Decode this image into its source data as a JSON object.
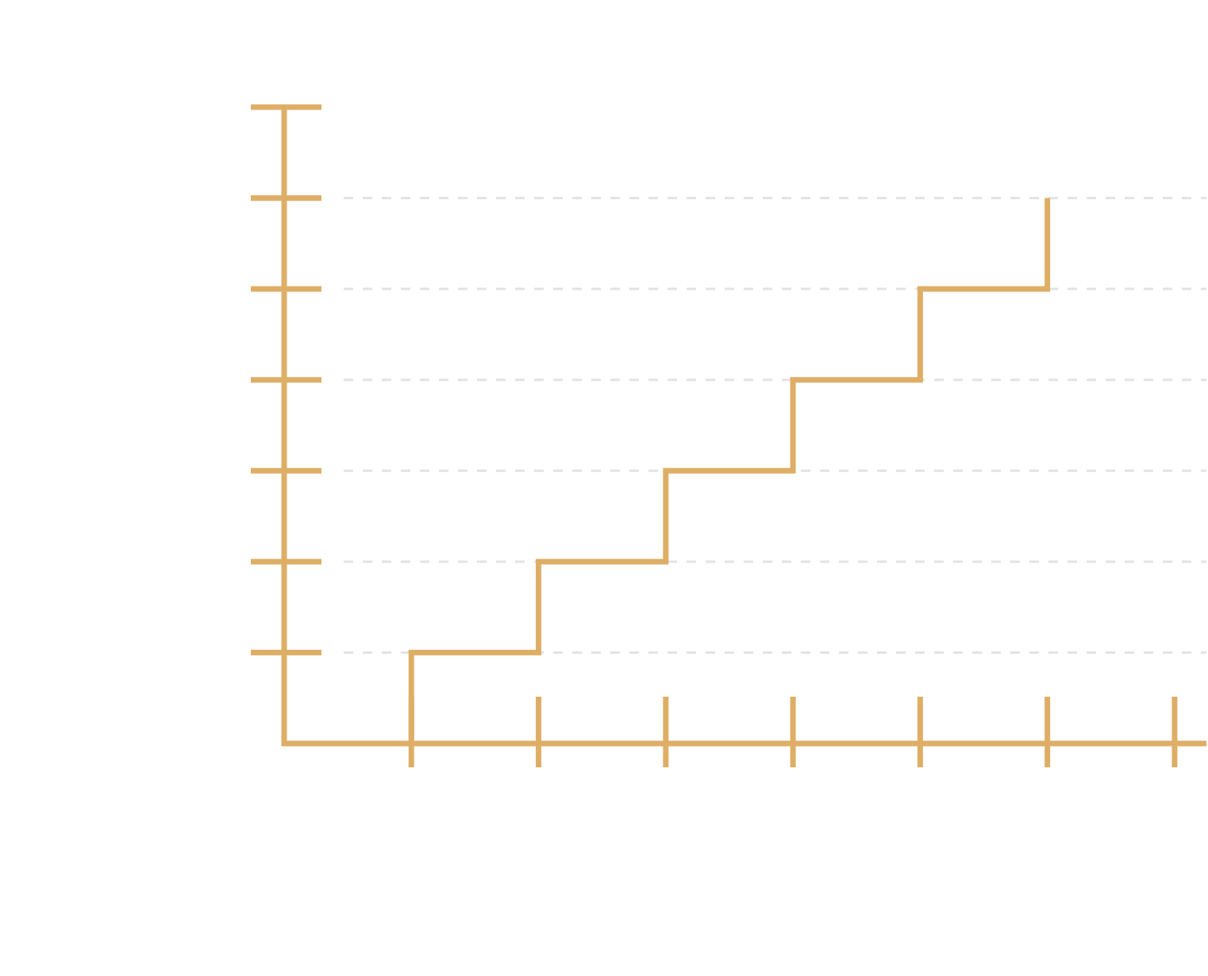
{
  "colors": {
    "line": "#dfae66",
    "axis": "#dfae66",
    "grid": "#e3e3e3",
    "background": "#ffffff"
  },
  "chart_data": {
    "type": "line",
    "step": true,
    "x": [
      0,
      1,
      2,
      3,
      4,
      5,
      6
    ],
    "y": [
      0,
      1,
      2,
      3,
      4,
      5,
      6
    ],
    "xlim": [
      0,
      7.25
    ],
    "ylim": [
      0,
      7
    ],
    "x_ticks": [
      1,
      2,
      3,
      4,
      5,
      6,
      7
    ],
    "y_ticks": [
      1,
      2,
      3,
      4,
      5,
      6,
      7
    ],
    "grid": {
      "horizontal": true,
      "vertical": false,
      "style": "dashed"
    },
    "title": "",
    "xlabel": "",
    "ylabel": "",
    "legend": false
  }
}
